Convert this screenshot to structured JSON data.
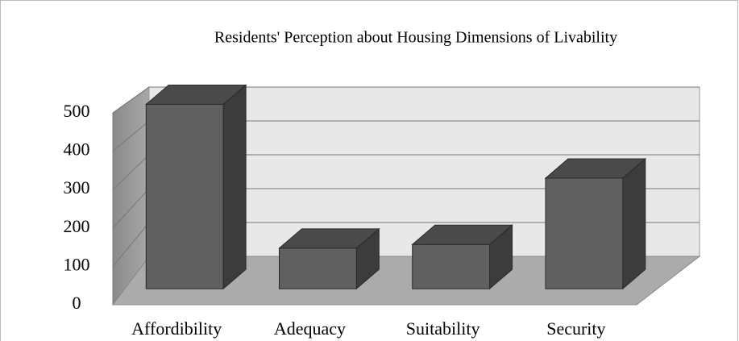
{
  "chart_data": {
    "type": "bar3d",
    "title": "Residents' Perception about Housing Dimensions of Livability",
    "categories": [
      "Affordibility",
      "Adequacy",
      "Suitability",
      "Security"
    ],
    "values": [
      500,
      110,
      120,
      300
    ],
    "color": "#606060",
    "ylim": [
      0,
      500
    ],
    "yticks": [
      0,
      100,
      200,
      300,
      400,
      500
    ],
    "grid": true
  }
}
